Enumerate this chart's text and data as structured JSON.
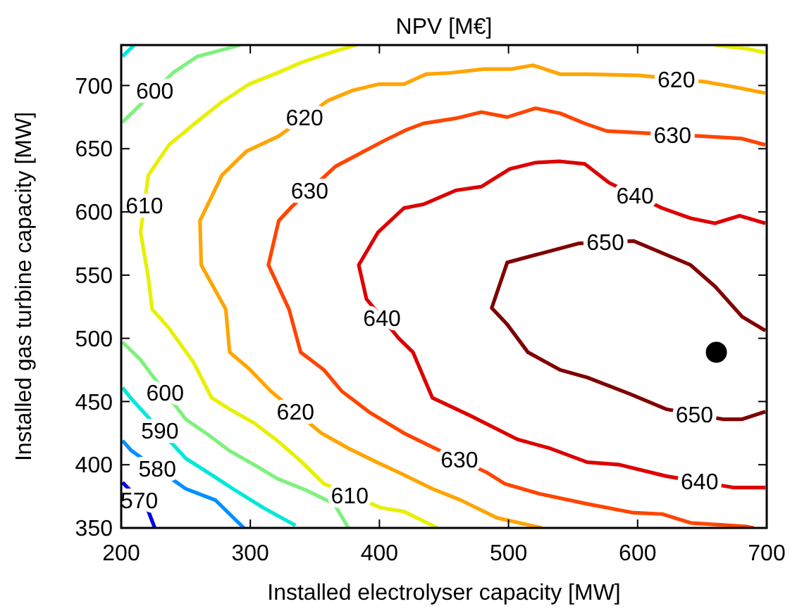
{
  "chart_data": {
    "type": "line",
    "title": "NPV [M€]",
    "xlabel": "Installed electrolyser capacity [MW]",
    "ylabel": "Installed gas turbine capacity [MW]",
    "xlim": [
      200,
      700
    ],
    "ylim": [
      350,
      732
    ],
    "xticks": [
      200,
      300,
      400,
      500,
      600,
      700
    ],
    "yticks": [
      350,
      400,
      450,
      500,
      550,
      600,
      650,
      700
    ],
    "marker": "none",
    "line_style": "solid",
    "series": [
      {
        "color": "#800000",
        "x": [
          699,
          681,
          660,
          641,
          597,
          554,
          499,
          487,
          499,
          515,
          540,
          561,
          594,
          622,
          666,
          681,
          699
        ],
        "values": [
          506,
          517,
          541,
          558,
          577,
          575,
          560,
          524,
          511,
          489,
          475,
          469,
          456,
          444,
          436,
          436,
          442
        ]
      },
      {
        "color": "#dd0000",
        "x": [
          699,
          679,
          660,
          641,
          619,
          578,
          559,
          540,
          521,
          501,
          479,
          459,
          434,
          419,
          399,
          384,
          390,
          415,
          426,
          441,
          470,
          507,
          532,
          561,
          586,
          622,
          674,
          699
        ],
        "values": [
          591,
          597,
          591,
          595,
          603,
          623,
          638,
          640,
          639,
          634,
          620,
          617,
          606,
          603,
          584,
          558,
          531,
          500,
          489,
          453,
          439,
          420,
          413,
          402,
          400,
          391,
          382,
          382
        ]
      },
      {
        "color": "#ff4500",
        "x": [
          699,
          681,
          649,
          576,
          559,
          540,
          521,
          499,
          479,
          459,
          434,
          421,
          403,
          366,
          332,
          322,
          314,
          330,
          339,
          357,
          371,
          393,
          419,
          441,
          483,
          497,
          524,
          561,
          597,
          619,
          641,
          685,
          690
        ],
        "values": [
          653,
          658,
          660,
          664,
          670,
          678,
          682,
          675,
          679,
          674,
          670,
          665,
          656,
          636,
          604,
          593,
          558,
          523,
          489,
          475,
          458,
          441,
          425,
          414,
          394,
          385,
          377,
          369,
          362,
          361,
          354,
          351,
          350
        ]
      },
      {
        "color": "#ffa500",
        "x": [
          699,
          674,
          652,
          601,
          561,
          540,
          519,
          502,
          481,
          455,
          436,
          419,
          399,
          379,
          360,
          322,
          297,
          278,
          261,
          262,
          281,
          284,
          299,
          316,
          355,
          376,
          398,
          419,
          441,
          463,
          491,
          526
        ],
        "values": [
          694,
          699,
          703,
          708,
          709,
          709,
          716,
          713,
          713,
          710,
          709,
          701,
          701,
          696,
          688,
          660,
          648,
          629,
          593,
          558,
          523,
          489,
          476,
          458,
          425,
          413,
          402,
          392,
          381,
          372,
          358,
          350
        ]
      },
      {
        "color": "#e8f000",
        "x": [
          382,
          365,
          339,
          321,
          299,
          278,
          257,
          237,
          221,
          215,
          221,
          224,
          237,
          256,
          270,
          284,
          303,
          321,
          339,
          357,
          401,
          419,
          445
        ],
        "values": [
          732,
          727,
          718,
          710,
          701,
          687,
          670,
          653,
          629,
          584,
          548,
          523,
          508,
          481,
          453,
          444,
          433,
          419,
          403,
          385,
          366,
          363,
          350
        ]
      },
      {
        "color": "#e8f000",
        "x": [
          660,
          685,
          699
        ],
        "values": [
          732,
          729,
          726
        ]
      },
      {
        "color": "#80f080",
        "x": [
          292,
          281,
          259,
          240,
          212,
          201
        ],
        "values": [
          732,
          729,
          723,
          710,
          682,
          671
        ]
      },
      {
        "color": "#80f080",
        "x": [
          201,
          215,
          223,
          250,
          267,
          284,
          303,
          321,
          343,
          365,
          376
        ],
        "values": [
          497,
          483,
          472,
          436,
          424,
          411,
          400,
          389,
          380,
          369,
          350
        ]
      },
      {
        "color": "#00e8d8",
        "x": [
          201,
          210
        ],
        "values": [
          723,
          732
        ]
      },
      {
        "color": "#00e8d8",
        "x": [
          201,
          208,
          250,
          267,
          288,
          310,
          335
        ],
        "values": [
          461,
          452,
          405,
          394,
          380,
          366,
          352
        ]
      },
      {
        "color": "#0090ff",
        "x": [
          201,
          208,
          250,
          273,
          295
        ],
        "values": [
          419,
          411,
          381,
          372,
          350
        ]
      },
      {
        "color": "#0000e0",
        "x": [
          201,
          220,
          226
        ],
        "values": [
          386,
          366,
          350
        ]
      },
      {
        "type": "scatter",
        "color": "#000000",
        "marker": "circle",
        "x": [
          661
        ],
        "values": [
          489
        ]
      }
    ],
    "annotations": [
      {
        "text": "650",
        "x": 575,
        "y": 576
      },
      {
        "text": "650",
        "x": 644,
        "y": 440
      },
      {
        "text": "640",
        "x": 598,
        "y": 613
      },
      {
        "text": "640",
        "x": 402,
        "y": 516
      },
      {
        "text": "640",
        "x": 648,
        "y": 387
      },
      {
        "text": "630",
        "x": 346,
        "y": 617
      },
      {
        "text": "630",
        "x": 627,
        "y": 661
      },
      {
        "text": "630",
        "x": 462,
        "y": 404
      },
      {
        "text": "620",
        "x": 342,
        "y": 675
      },
      {
        "text": "620",
        "x": 630,
        "y": 705
      },
      {
        "text": "620",
        "x": 335,
        "y": 442
      },
      {
        "text": "610",
        "x": 218,
        "y": 605
      },
      {
        "text": "610",
        "x": 377,
        "y": 376
      },
      {
        "text": "600",
        "x": 226,
        "y": 696
      },
      {
        "text": "600",
        "x": 234,
        "y": 457
      },
      {
        "text": "590",
        "x": 230,
        "y": 427
      },
      {
        "text": "580",
        "x": 228,
        "y": 397
      },
      {
        "text": "570",
        "x": 214,
        "y": 372
      }
    ]
  }
}
